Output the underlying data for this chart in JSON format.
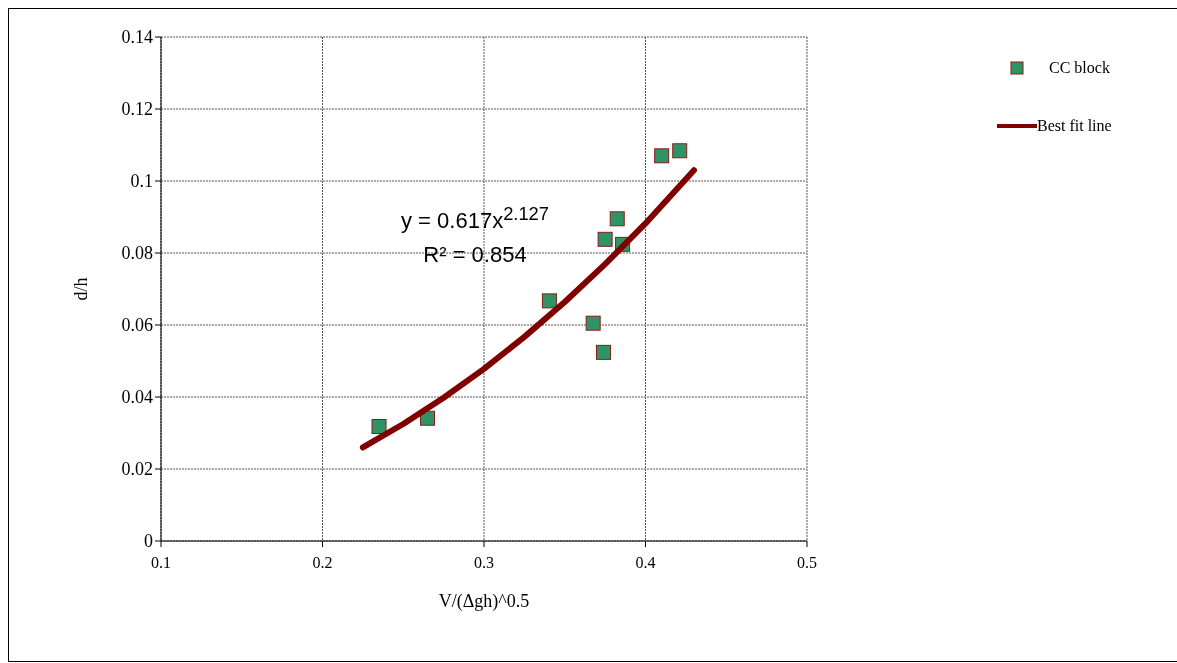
{
  "chart_data": {
    "type": "scatter",
    "xlabel": "V/(Δgh)^0.5",
    "ylabel": "d/h",
    "xlim": [
      0.1,
      0.5
    ],
    "xticks": [
      0.1,
      0.2,
      0.3,
      0.4,
      0.5
    ],
    "ylim": [
      0,
      0.14
    ],
    "yticks": [
      0,
      0.02,
      0.04,
      0.06,
      0.08,
      0.1,
      0.12,
      0.14
    ],
    "grid": true,
    "legend": "top right",
    "annotations": [
      "y = 0.617x$^{2.127}$",
      "R² = 0.854"
    ],
    "series": [
      {
        "name": "CC block",
        "type": "scatter",
        "marker": "square",
        "color": "#2e9465",
        "x": [
          0.235,
          0.265,
          0.3405,
          0.3676,
          0.374,
          0.375,
          0.3825,
          0.3858,
          0.41,
          0.4212
        ],
        "values": [
          0.0318,
          0.0341,
          0.0667,
          0.0605,
          0.0524,
          0.0838,
          0.0895,
          0.0824,
          0.107,
          0.1084
        ]
      },
      {
        "name": "Best fit line",
        "type": "line",
        "marker": "none",
        "color": "#800000",
        "x": [
          0.225,
          0.25,
          0.275,
          0.3,
          0.325,
          0.35,
          0.375,
          0.4,
          0.43
        ],
        "values": [
          0.026,
          0.0325,
          0.0398,
          0.0478,
          0.0567,
          0.0664,
          0.0769,
          0.0882,
          0.103
        ]
      }
    ]
  }
}
